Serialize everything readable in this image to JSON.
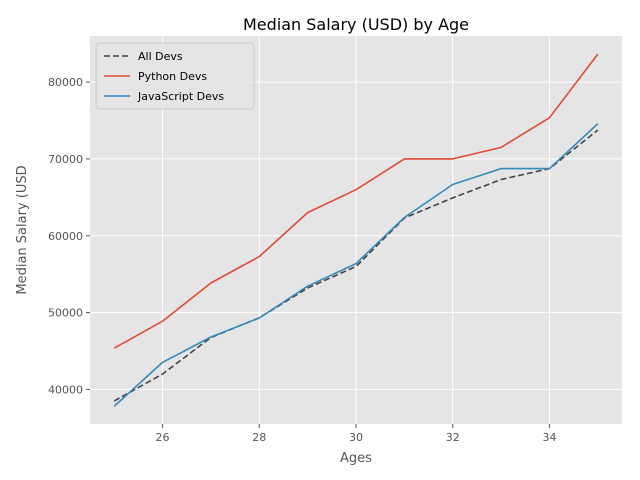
{
  "chart_data": {
    "type": "line",
    "title": "Median Salary (USD) by Age",
    "xlabel": "Ages",
    "ylabel": "Median Salary (USD",
    "x": [
      25,
      26,
      27,
      28,
      29,
      30,
      31,
      32,
      33,
      34,
      35
    ],
    "xlim": [
      24.5,
      35.5
    ],
    "ylim": [
      35500,
      86000
    ],
    "xticks": [
      26,
      28,
      30,
      32,
      34
    ],
    "yticks": [
      40000,
      50000,
      60000,
      70000,
      80000
    ],
    "grid": true,
    "legend_position": "top-left",
    "series": [
      {
        "name": "All Devs",
        "color": "#444444",
        "style": "dashed",
        "values": [
          38496,
          42000,
          46752,
          49320,
          53200,
          56000,
          62316,
          64928,
          67317,
          68748,
          73752
        ]
      },
      {
        "name": "Python Devs",
        "color": "#e24a33",
        "style": "solid",
        "values": [
          45372,
          48876,
          53850,
          57287,
          63016,
          65998,
          70003,
          70000,
          71496,
          75370,
          83640
        ]
      },
      {
        "name": "JavaScript Devs",
        "color": "#348abd",
        "style": "solid",
        "values": [
          37810,
          43515,
          46823,
          49293,
          53437,
          56373,
          62375,
          66674,
          68745,
          68746,
          74583
        ]
      }
    ]
  }
}
